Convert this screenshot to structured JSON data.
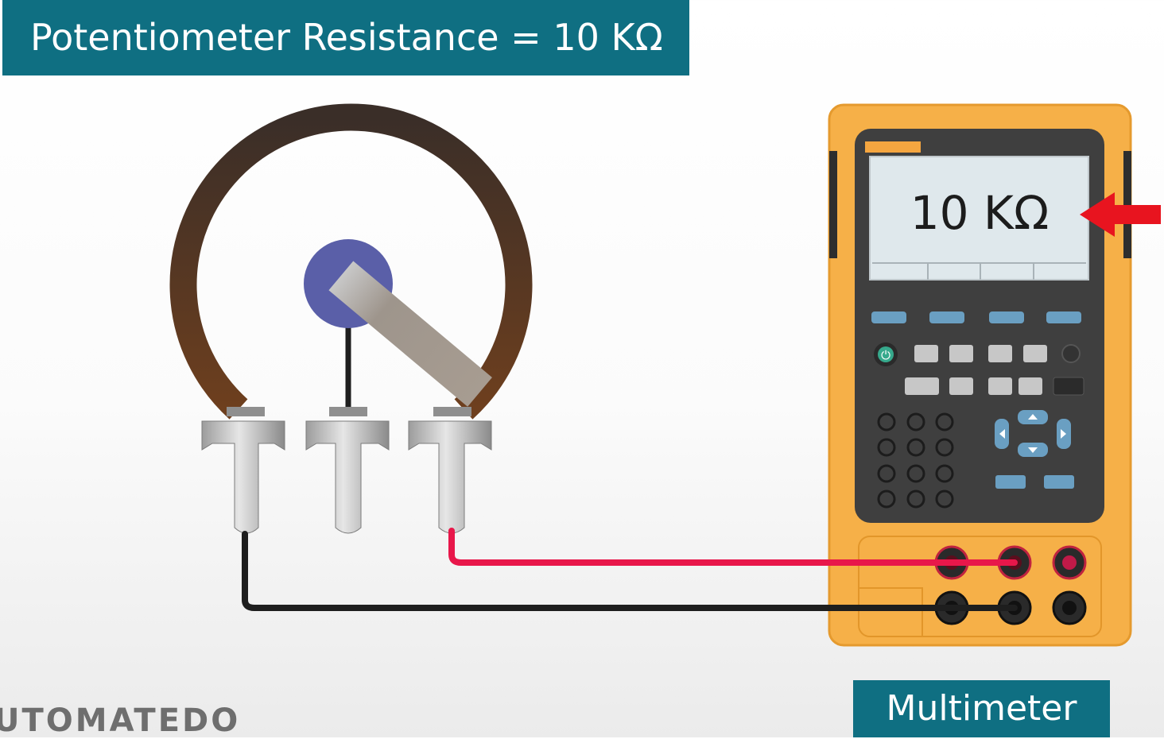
{
  "title": "Potentiometer Resistance = 10 KΩ",
  "multimeter": {
    "label": "Multimeter",
    "display_reading": "10 KΩ"
  },
  "watermark": "UTOMATEDO",
  "colors": {
    "title_bg": "#0f6f82",
    "wire_red": "#e8174a",
    "wire_black": "#1e1e1e",
    "meter_body": "#f6b048",
    "arrow": "#e8141f",
    "resistive_track": "#4a3528",
    "wiper_hub": "#5a5fa8"
  }
}
